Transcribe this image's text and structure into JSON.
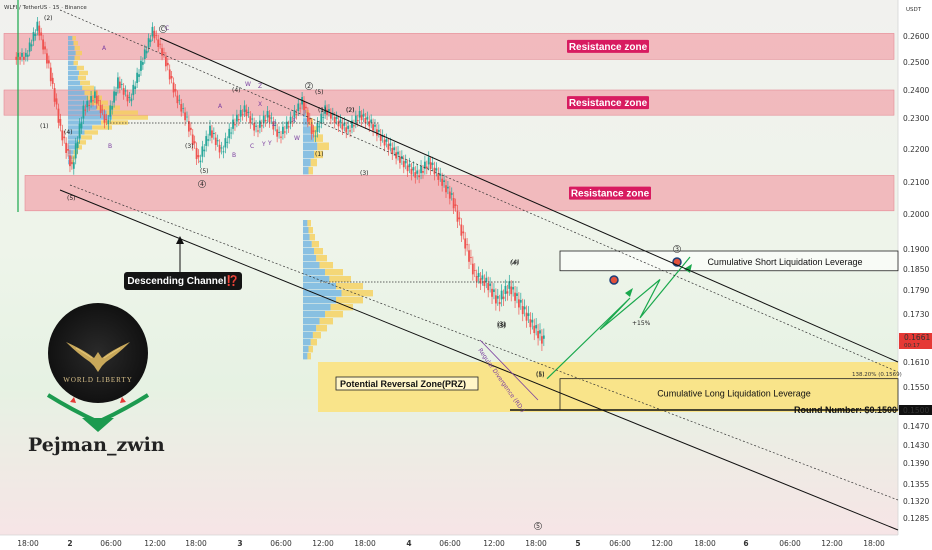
{
  "header": {
    "symbol_line": "WLFI / TetherUS · 15 · Binance",
    "currency": "USDT"
  },
  "colors": {
    "up": "#26a69a",
    "down": "#ef5350",
    "resistance_fill": "#f2a7ad",
    "resistance_label": "#d81b60",
    "prz": "#fbe27a",
    "bg_top": "#f3f3ef",
    "bg_bottom": "#f9e6e8",
    "bg_mid": "#e8f3e6"
  },
  "chart_data": {
    "type": "candlestick",
    "title": "",
    "xlabel": "",
    "ylabel": "",
    "ylim": [
      0.125,
      0.268
    ],
    "x_tick_labels": [
      "18:00",
      "2",
      "06:00",
      "12:00",
      "18:00",
      "3",
      "06:00",
      "12:00",
      "18:00",
      "4",
      "06:00",
      "12:00",
      "18:00",
      "5",
      "06:00",
      "12:00",
      "18:00",
      "6",
      "06:00",
      "12:00",
      "18:00"
    ],
    "y_tick_labels": [
      "0.2600",
      "0.2500",
      "0.2400",
      "0.2300",
      "0.2200",
      "0.2100",
      "0.2000",
      "0.1900",
      "0.1850",
      "0.1790",
      "0.1730",
      "0.1661",
      "0.1610",
      "0.1550",
      "0.1500",
      "0.1470",
      "0.1430",
      "0.1390",
      "0.1355",
      "0.1320",
      "0.1285"
    ],
    "y_tick_values": [
      0.26,
      0.25,
      0.24,
      0.23,
      0.22,
      0.21,
      0.2,
      0.19,
      0.185,
      0.179,
      0.173,
      0.1661,
      0.161,
      0.155,
      0.15,
      0.147,
      0.143,
      0.139,
      0.1355,
      0.132,
      0.1285
    ],
    "price_path": [
      [
        0,
        0.252
      ],
      [
        1,
        0.264
      ],
      [
        2,
        0.248
      ],
      [
        3,
        0.226
      ],
      [
        4,
        0.214
      ],
      [
        5,
        0.233
      ],
      [
        6,
        0.238
      ],
      [
        7,
        0.228
      ],
      [
        8,
        0.243
      ],
      [
        9,
        0.236
      ],
      [
        10,
        0.249
      ],
      [
        11,
        0.262
      ],
      [
        12,
        0.252
      ],
      [
        13,
        0.238
      ],
      [
        14,
        0.229
      ],
      [
        15,
        0.216
      ],
      [
        16,
        0.226
      ],
      [
        17,
        0.219
      ],
      [
        18,
        0.228
      ],
      [
        19,
        0.233
      ],
      [
        20,
        0.226
      ],
      [
        21,
        0.231
      ],
      [
        22,
        0.224
      ],
      [
        23,
        0.229
      ],
      [
        24,
        0.236
      ],
      [
        25,
        0.224
      ],
      [
        26,
        0.233
      ],
      [
        27,
        0.229
      ],
      [
        28,
        0.226
      ],
      [
        29,
        0.231
      ],
      [
        30,
        0.228
      ],
      [
        31,
        0.223
      ],
      [
        32,
        0.219
      ],
      [
        33,
        0.215
      ],
      [
        34,
        0.212
      ],
      [
        35,
        0.216
      ],
      [
        36,
        0.211
      ],
      [
        37,
        0.205
      ],
      [
        38,
        0.193
      ],
      [
        39,
        0.183
      ],
      [
        40,
        0.181
      ],
      [
        41,
        0.176
      ],
      [
        42,
        0.18
      ],
      [
        43,
        0.175
      ],
      [
        44,
        0.17
      ],
      [
        45,
        0.166
      ]
    ],
    "projection": [
      0.157,
      0.177,
      0.169,
      0.182,
      0.172,
      0.188
    ],
    "resistance_zones": [
      {
        "label": "Resistance zone",
        "low": 0.251,
        "high": 0.261
      },
      {
        "label": "Resistance zone",
        "low": 0.231,
        "high": 0.24
      },
      {
        "label": "Resistance zone",
        "low": 0.201,
        "high": 0.212
      }
    ],
    "prz": {
      "label": "Potential Reversal Zone(PRZ)",
      "low": 0.15,
      "high": 0.161
    },
    "short_liq": {
      "label": "Cumulative Short Liquidation Leverage",
      "low": 0.1845,
      "high": 0.1895
    },
    "long_liq": {
      "label": "Cumulative Long Liquidation Leverage",
      "low": 0.15,
      "high": 0.157
    },
    "round_number": {
      "label": "Round Number: $0.1500",
      "value": 0.15
    },
    "current_price": {
      "value": "0.1661",
      "timer": "00:17"
    },
    "fib_label": "138.20% (0.1569)",
    "channel_label": "Descending Channel⁉️",
    "divergence_label": "Regular Divergence (RD-)",
    "gain_label": "+15%",
    "wave_labels": [
      "(2)",
      "(1)",
      "(4)",
      "(5)",
      "(3)",
      "(5)",
      "(1)",
      "(2)",
      "(3)",
      "(4)",
      "(5)",
      "(1)",
      "(2)",
      "(3)",
      "(4)",
      "(5)",
      "(5)",
      "(4)",
      "(3)",
      "(5)"
    ],
    "wave_labels_purple": [
      "A",
      "B",
      "C",
      "W",
      "X",
      "Y",
      "Z",
      "A",
      "B",
      "C",
      "Y",
      "X",
      "W",
      "Z"
    ],
    "circled": [
      "C",
      "2",
      "3",
      "4",
      "5"
    ]
  },
  "logo": {
    "text": "WORLD LIBERTY"
  },
  "author": {
    "name": "Pejman_zwin"
  }
}
